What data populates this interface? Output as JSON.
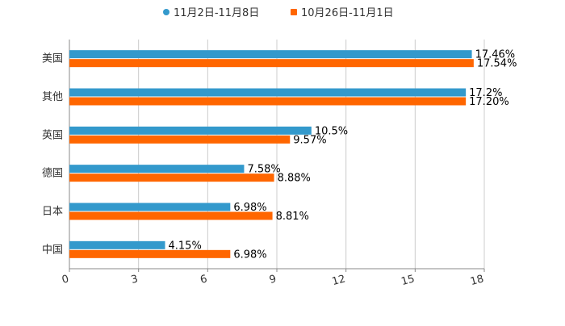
{
  "colors": {
    "series1": "#3399cc",
    "series2": "#ff6600",
    "grid": "#cccccc",
    "axis": "#888888",
    "text": "#333333",
    "label": "#000000"
  },
  "chart_data": {
    "type": "bar",
    "orientation": "horizontal",
    "title": "",
    "xlabel": "",
    "ylabel": "",
    "xlim": [
      0,
      18
    ],
    "ticks": [
      "0",
      "3",
      "6",
      "9",
      "12",
      "15",
      "18"
    ],
    "tick_values": [
      0,
      3,
      6,
      9,
      12,
      15,
      18
    ],
    "grid": true,
    "legend_position": "top-center",
    "categories": [
      "美国",
      "其他",
      "英国",
      "德国",
      "日本",
      "中国"
    ],
    "series": [
      {
        "name": "11月2日-11月8日",
        "values": [
          17.46,
          17.2,
          10.5,
          7.58,
          6.98,
          4.15
        ],
        "labels": [
          "17.46%",
          "17.2%",
          "10.5%",
          "7.58%",
          "6.98%",
          "4.15%"
        ]
      },
      {
        "name": "10月26日-11月1日",
        "values": [
          17.54,
          17.2,
          9.57,
          8.88,
          8.81,
          6.98
        ],
        "labels": [
          "17.54%",
          "17.20%",
          "9.57%",
          "8.88%",
          "8.81%",
          "6.98%"
        ]
      }
    ]
  }
}
